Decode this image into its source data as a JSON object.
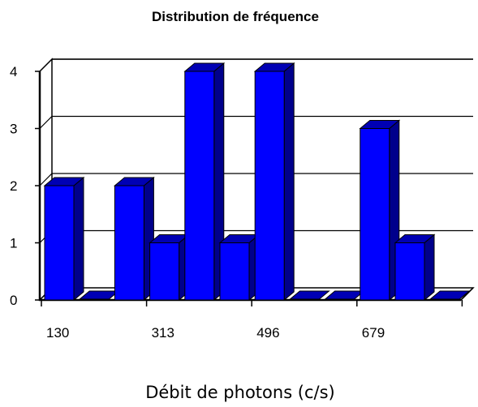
{
  "chart_data": {
    "type": "bar",
    "title": "Distribution de fréquence",
    "xlabel": "Débit de photons (c/s)",
    "ylabel": "",
    "ylim": [
      0,
      4
    ],
    "yticks": [
      "0",
      "1",
      "2",
      "3",
      "4"
    ],
    "xtick_labels": [
      "130",
      "313",
      "496",
      "679"
    ],
    "values": [
      2,
      0,
      2,
      1,
      4,
      1,
      4,
      0,
      0,
      3,
      1,
      0
    ],
    "grid": true,
    "legend": "none",
    "three_d": true,
    "colors": {
      "bar_front": "#0000ff",
      "bar_side": "#00008b",
      "bar_top": "#0000b4",
      "edge": "#000000",
      "grid": "#000000",
      "background": "#ffffff"
    }
  }
}
